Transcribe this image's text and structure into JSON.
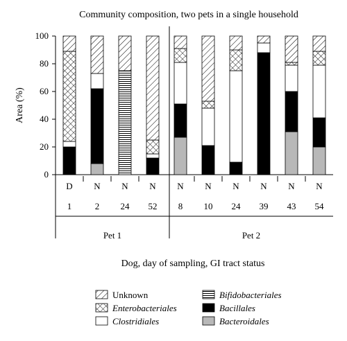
{
  "chart_data": {
    "type": "bar",
    "stacked": true,
    "title": "Community composition, two pets in a single household",
    "ylabel": "Area (%)",
    "xlabel": "Dog, day of sampling, GI tract status",
    "ylim": [
      0,
      100
    ],
    "yticks": [
      "0",
      "20",
      "40",
      "60",
      "80",
      "100"
    ],
    "categories": [
      {
        "status": "D",
        "day": "1",
        "pet": "Pet 1"
      },
      {
        "status": "N",
        "day": "2",
        "pet": "Pet 1"
      },
      {
        "status": "N",
        "day": "24",
        "pet": "Pet 1"
      },
      {
        "status": "N",
        "day": "52",
        "pet": "Pet 1"
      },
      {
        "status": "N",
        "day": "8",
        "pet": "Pet 2"
      },
      {
        "status": "N",
        "day": "10",
        "pet": "Pet 2"
      },
      {
        "status": "N",
        "day": "24",
        "pet": "Pet 2"
      },
      {
        "status": "N",
        "day": "39",
        "pet": "Pet 2"
      },
      {
        "status": "N",
        "day": "43",
        "pet": "Pet 2"
      },
      {
        "status": "N",
        "day": "54",
        "pet": "Pet 2"
      }
    ],
    "groups": [
      "Pet 1",
      "Pet 2"
    ],
    "series": [
      {
        "name": "Bacteroidales",
        "pattern": "gray",
        "values": [
          0,
          8,
          0,
          0,
          27,
          0,
          0,
          0,
          31,
          20
        ]
      },
      {
        "name": "Bacillales",
        "pattern": "black",
        "values": [
          20,
          54,
          0,
          12,
          24,
          21,
          9,
          88,
          29,
          21
        ]
      },
      {
        "name": "Bifidobacteriales",
        "pattern": "horizontal",
        "values": [
          0,
          0,
          75,
          0,
          0,
          0,
          0,
          0,
          0,
          0
        ]
      },
      {
        "name": "Clostridiales",
        "pattern": "white",
        "values": [
          4,
          11,
          0,
          3,
          30,
          27,
          66,
          7,
          19,
          38
        ]
      },
      {
        "name": "Enterobacteriales",
        "pattern": "crosshatch",
        "values": [
          65,
          0,
          0,
          10,
          10,
          5,
          15,
          0,
          2,
          10
        ]
      },
      {
        "name": "Unknown",
        "pattern": "diagonal",
        "values": [
          11,
          27,
          25,
          75,
          9,
          47,
          10,
          5,
          19,
          11
        ]
      }
    ],
    "legend": {
      "placement": "bottom",
      "entries": [
        {
          "name": "Unknown",
          "pattern": "diagonal",
          "italic": false
        },
        {
          "name": "Enterobacteriales",
          "pattern": "crosshatch",
          "italic": true
        },
        {
          "name": "Clostridiales",
          "pattern": "white",
          "italic": true
        },
        {
          "name": "Bifidobacteriales",
          "pattern": "horizontal",
          "italic": true
        },
        {
          "name": "Bacillales",
          "pattern": "black",
          "italic": true
        },
        {
          "name": "Bacteroidales",
          "pattern": "gray",
          "italic": true
        }
      ]
    },
    "colors": {
      "gray": "#b8b8b8",
      "black": "#000000",
      "white": "#ffffff"
    }
  }
}
